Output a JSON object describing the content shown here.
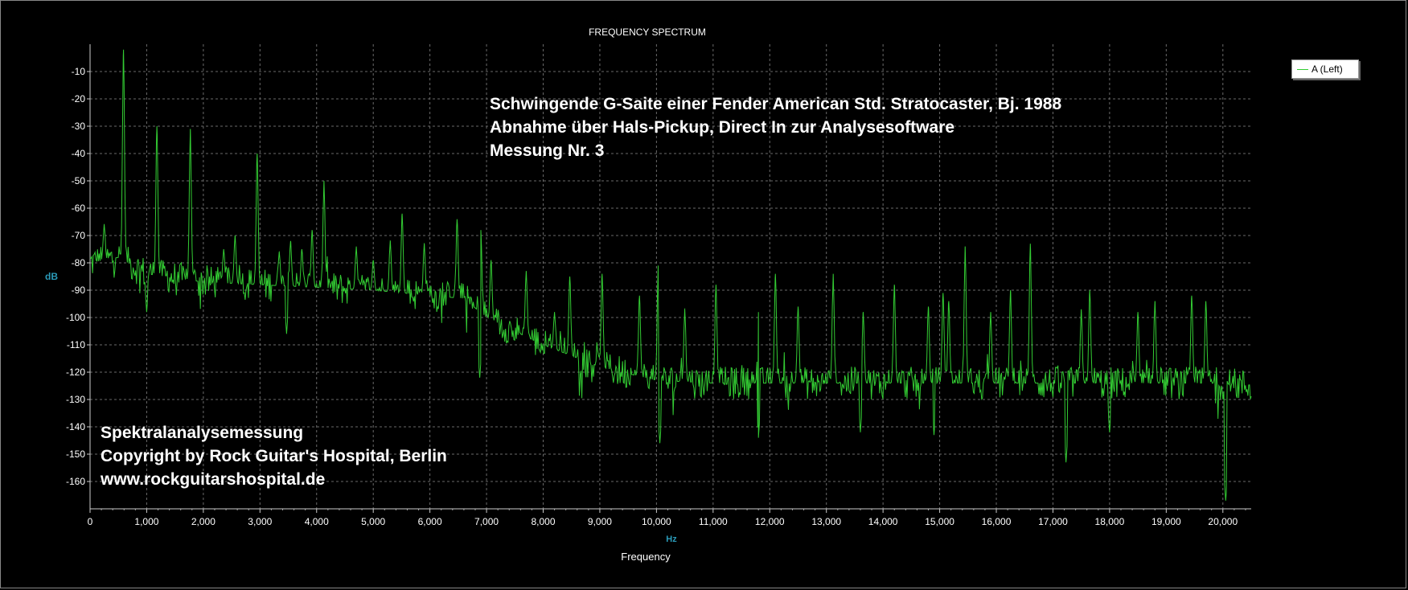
{
  "chart_data": {
    "type": "line",
    "title": "FREQUENCY SPECTRUM",
    "xlabel": "Frequency",
    "xunit": "Hz",
    "ylabel": "dB",
    "xlim": [
      0,
      20500
    ],
    "ylim": [
      -170,
      0
    ],
    "x_ticks": [
      0,
      1000,
      2000,
      3000,
      4000,
      5000,
      6000,
      7000,
      8000,
      9000,
      10000,
      11000,
      12000,
      13000,
      14000,
      15000,
      16000,
      17000,
      18000,
      19000,
      20000
    ],
    "x_tick_labels": [
      "0",
      "1,000",
      "2,000",
      "3,000",
      "4,000",
      "5,000",
      "6,000",
      "7,000",
      "8,000",
      "9,000",
      "10,000",
      "11,000",
      "12,000",
      "13,000",
      "14,000",
      "15,000",
      "16,000",
      "17,000",
      "18,000",
      "19,000",
      "20,000"
    ],
    "y_ticks": [
      -10,
      -20,
      -30,
      -40,
      -50,
      -60,
      -70,
      -80,
      -90,
      -100,
      -110,
      -120,
      -130,
      -140,
      -150,
      -160
    ],
    "grid": true,
    "legend_position": "top-right",
    "series": [
      {
        "name": "A (Left)",
        "color": "#33cc33",
        "baseline": [
          [
            0,
            -80
          ],
          [
            500,
            -78
          ],
          [
            1000,
            -84
          ],
          [
            2000,
            -87
          ],
          [
            3000,
            -88
          ],
          [
            4000,
            -89
          ],
          [
            5000,
            -90
          ],
          [
            6000,
            -92
          ],
          [
            6600,
            -93
          ],
          [
            7000,
            -100
          ],
          [
            8000,
            -110
          ],
          [
            9000,
            -118
          ],
          [
            10000,
            -123
          ],
          [
            11000,
            -124
          ],
          [
            12000,
            -124
          ],
          [
            13000,
            -124
          ],
          [
            14000,
            -124
          ],
          [
            15000,
            -124
          ],
          [
            16000,
            -124
          ],
          [
            17000,
            -124
          ],
          [
            18000,
            -124
          ],
          [
            19000,
            -124
          ],
          [
            20000,
            -124
          ],
          [
            20500,
            -125
          ]
        ],
        "peaks": [
          {
            "freq": 250,
            "db": -66
          },
          {
            "freq": 590,
            "db": -2
          },
          {
            "freq": 1180,
            "db": -30
          },
          {
            "freq": 1770,
            "db": -31
          },
          {
            "freq": 2360,
            "db": -75
          },
          {
            "freq": 2560,
            "db": -70
          },
          {
            "freq": 2950,
            "db": -40
          },
          {
            "freq": 3340,
            "db": -76
          },
          {
            "freq": 3540,
            "db": -72
          },
          {
            "freq": 3740,
            "db": -75
          },
          {
            "freq": 3920,
            "db": -68
          },
          {
            "freq": 4130,
            "db": -50
          },
          {
            "freq": 4700,
            "db": -74
          },
          {
            "freq": 5000,
            "db": -79
          },
          {
            "freq": 5300,
            "db": -72
          },
          {
            "freq": 5510,
            "db": -62
          },
          {
            "freq": 5900,
            "db": -73
          },
          {
            "freq": 6480,
            "db": -64
          },
          {
            "freq": 6900,
            "db": -68
          },
          {
            "freq": 7080,
            "db": -79
          },
          {
            "freq": 7700,
            "db": -83
          },
          {
            "freq": 8200,
            "db": -98
          },
          {
            "freq": 8470,
            "db": -85
          },
          {
            "freq": 9040,
            "db": -84
          },
          {
            "freq": 9700,
            "db": -92
          },
          {
            "freq": 10030,
            "db": -81
          },
          {
            "freq": 10500,
            "db": -97
          },
          {
            "freq": 11050,
            "db": -88
          },
          {
            "freq": 11800,
            "db": -98
          },
          {
            "freq": 12100,
            "db": -84
          },
          {
            "freq": 12500,
            "db": -96
          },
          {
            "freq": 13120,
            "db": -84
          },
          {
            "freq": 13650,
            "db": -98
          },
          {
            "freq": 14200,
            "db": -88
          },
          {
            "freq": 14800,
            "db": -96
          },
          {
            "freq": 15060,
            "db": -91
          },
          {
            "freq": 15160,
            "db": -94
          },
          {
            "freq": 15450,
            "db": -74
          },
          {
            "freq": 15900,
            "db": -98
          },
          {
            "freq": 16250,
            "db": -90
          },
          {
            "freq": 16600,
            "db": -73
          },
          {
            "freq": 17500,
            "db": -97
          },
          {
            "freq": 17650,
            "db": -90
          },
          {
            "freq": 18500,
            "db": -98
          },
          {
            "freq": 18800,
            "db": -94
          },
          {
            "freq": 19450,
            "db": -92
          },
          {
            "freq": 19700,
            "db": -94
          }
        ],
        "dips": [
          {
            "freq": 1000,
            "db": -98
          },
          {
            "freq": 3470,
            "db": -106
          },
          {
            "freq": 6880,
            "db": -122
          },
          {
            "freq": 10060,
            "db": -146
          },
          {
            "freq": 11800,
            "db": -144
          },
          {
            "freq": 13600,
            "db": -142
          },
          {
            "freq": 14900,
            "db": -143
          },
          {
            "freq": 17230,
            "db": -153
          },
          {
            "freq": 18000,
            "db": -142
          },
          {
            "freq": 20050,
            "db": -167
          }
        ]
      }
    ]
  },
  "annotations": {
    "top_text": [
      "Schwingende G-Saite einer Fender American Std. Stratocaster, Bj. 1988",
      "Abnahme über Hals-Pickup, Direct In zur Analysesoftware",
      "Messung Nr. 3"
    ],
    "bottom_text": [
      "Spektralanalysemessung",
      "Copyright by Rock Guitar's Hospital, Berlin",
      "www.rockguitarshospital.de"
    ]
  }
}
